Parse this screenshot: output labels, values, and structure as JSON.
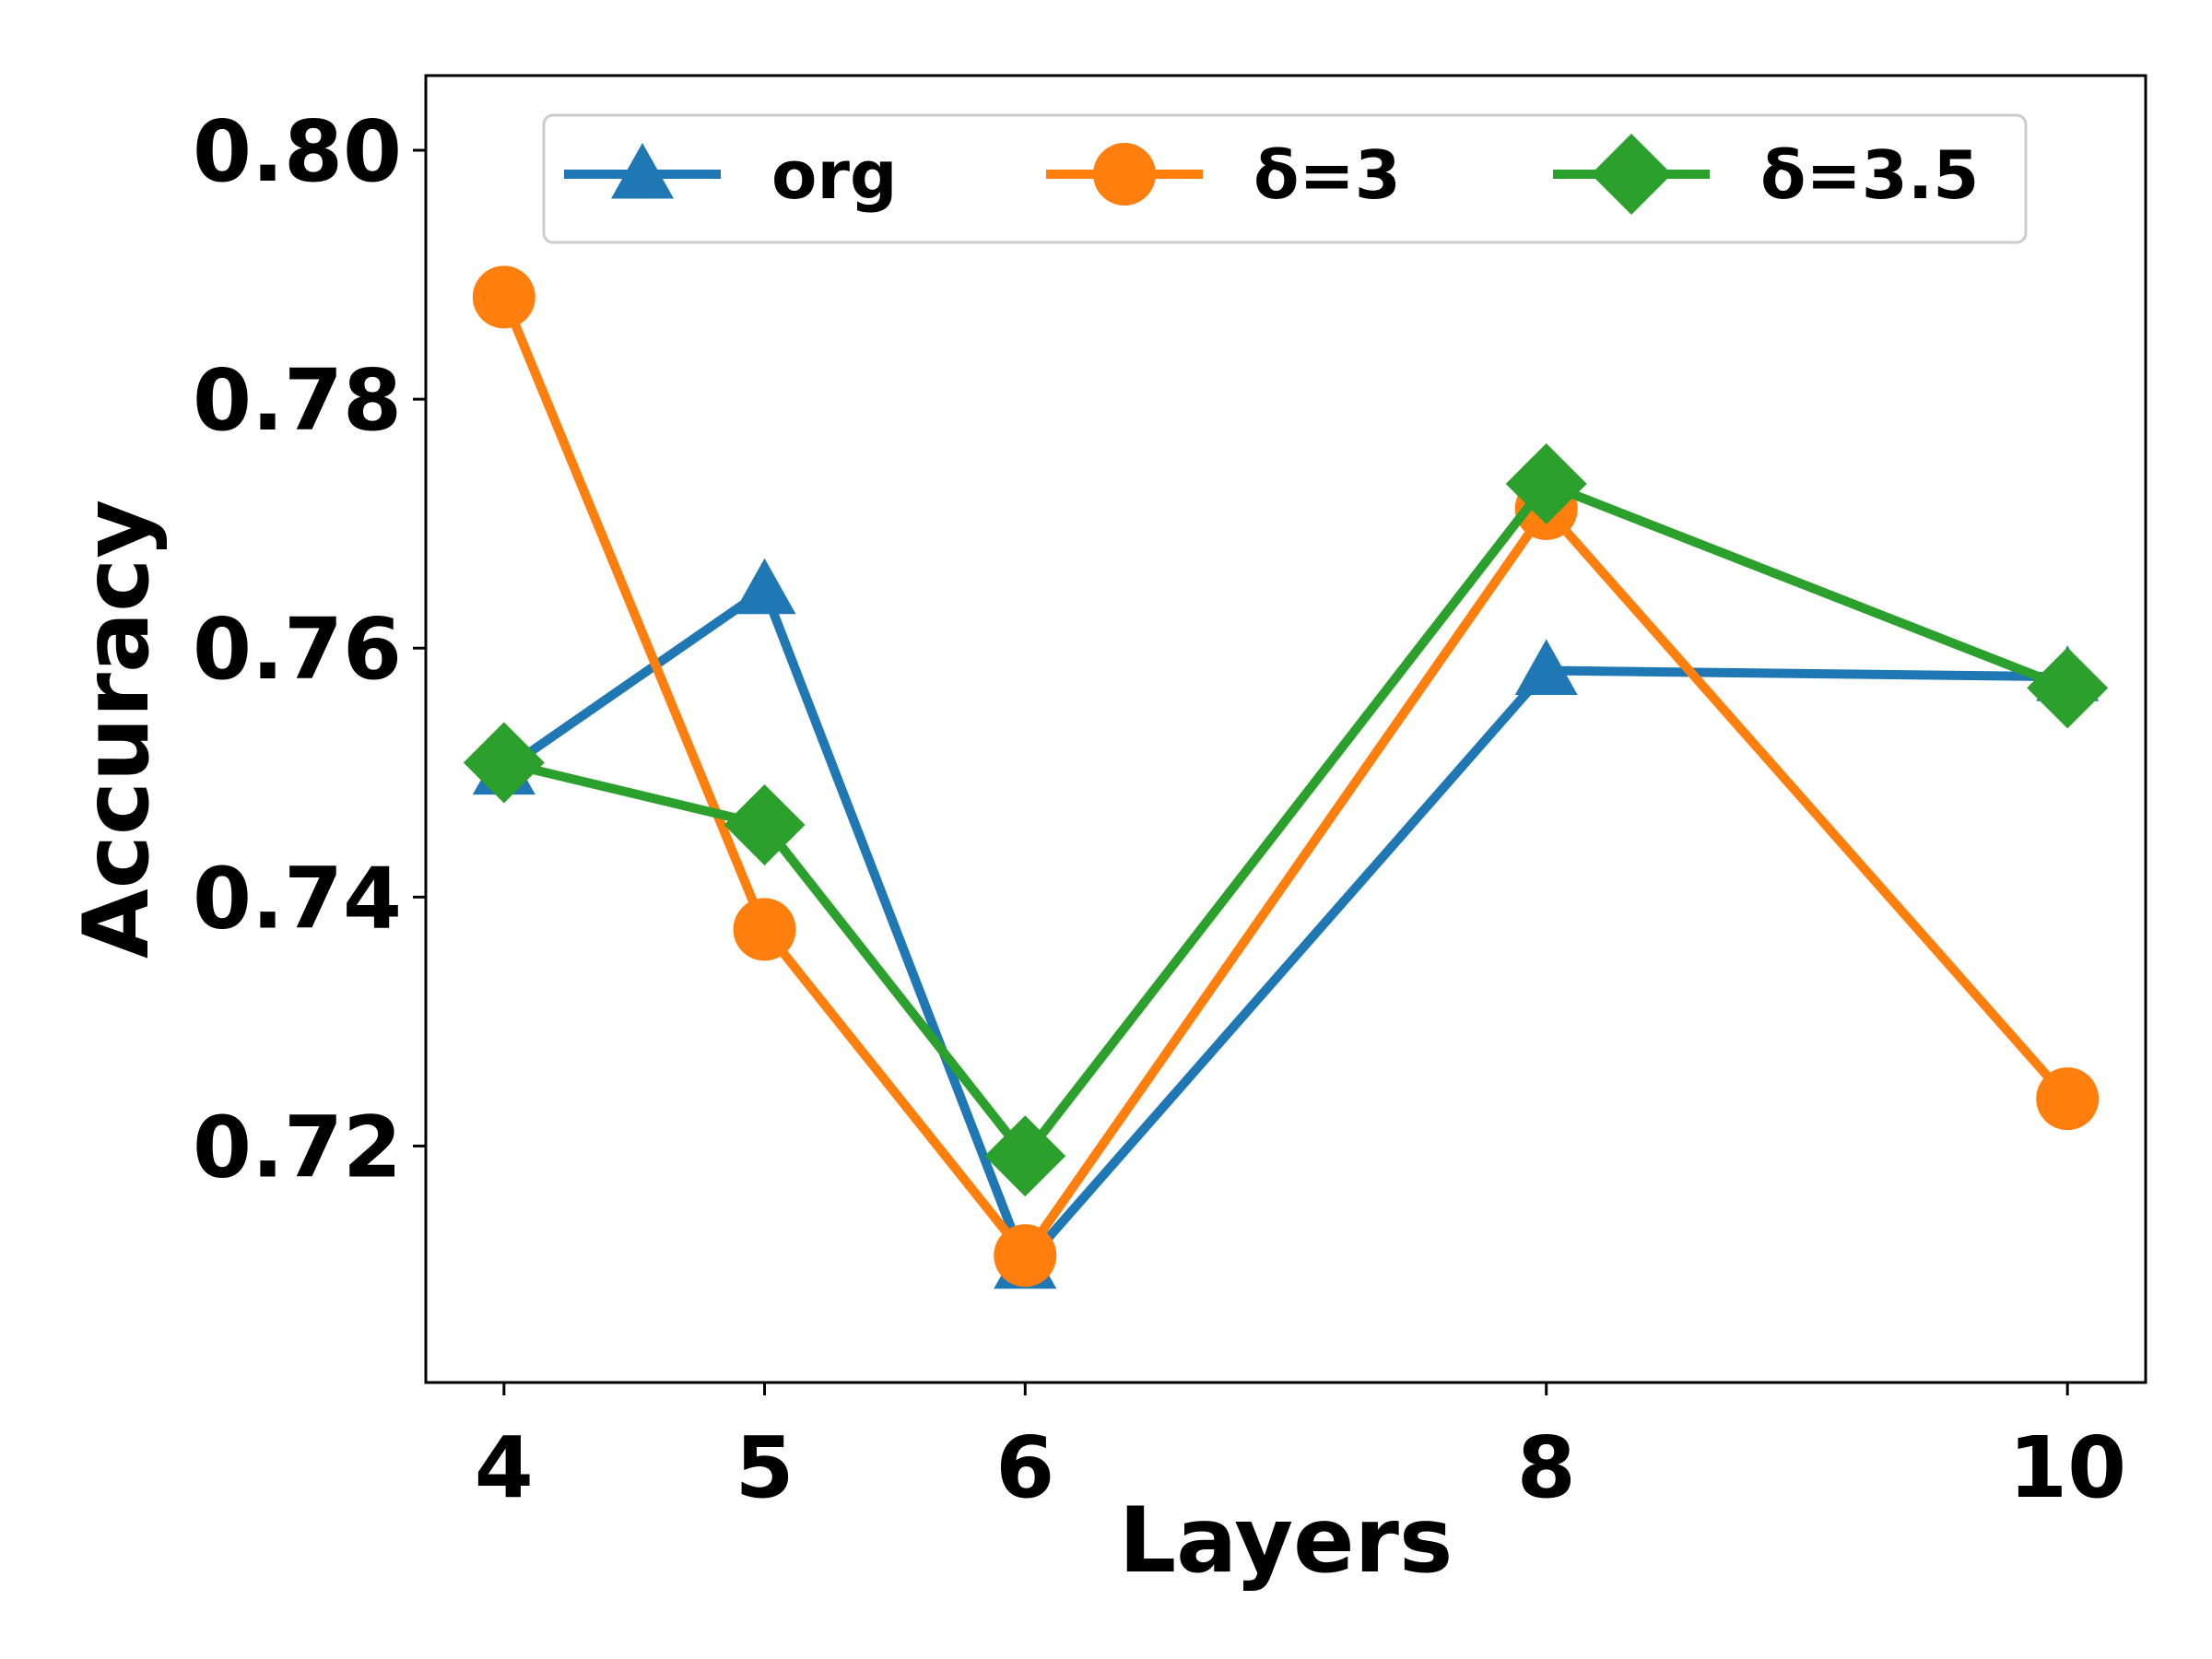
{
  "chart_data": {
    "type": "line",
    "title": "",
    "xlabel": "Layers",
    "ylabel": "Accuracy",
    "x": [
      4,
      5,
      6,
      8,
      10
    ],
    "x_ticks": [
      "4",
      "5",
      "6",
      "8",
      "10"
    ],
    "xlim": [
      3.7,
      10.3
    ],
    "y_ticks": [
      "0.72",
      "0.74",
      "0.76",
      "0.78",
      "0.80"
    ],
    "ylim": [
      0.701,
      0.806
    ],
    "grid": false,
    "legend_position": "top, horizontal",
    "series": [
      {
        "name": "org",
        "color": "#1f77b4",
        "marker": "triangle",
        "values": [
          0.7502,
          0.7647,
          0.7105,
          0.7582,
          0.7577
        ]
      },
      {
        "name": "δ=3",
        "color": "#ff7f0e",
        "marker": "circle",
        "values": [
          0.7882,
          0.7374,
          0.7112,
          0.7712,
          0.7238
        ]
      },
      {
        "name": "δ=3.5",
        "color": "#2ca02c",
        "marker": "diamond",
        "values": [
          0.7508,
          0.7458,
          0.7192,
          0.7732,
          0.7568
        ]
      }
    ]
  }
}
